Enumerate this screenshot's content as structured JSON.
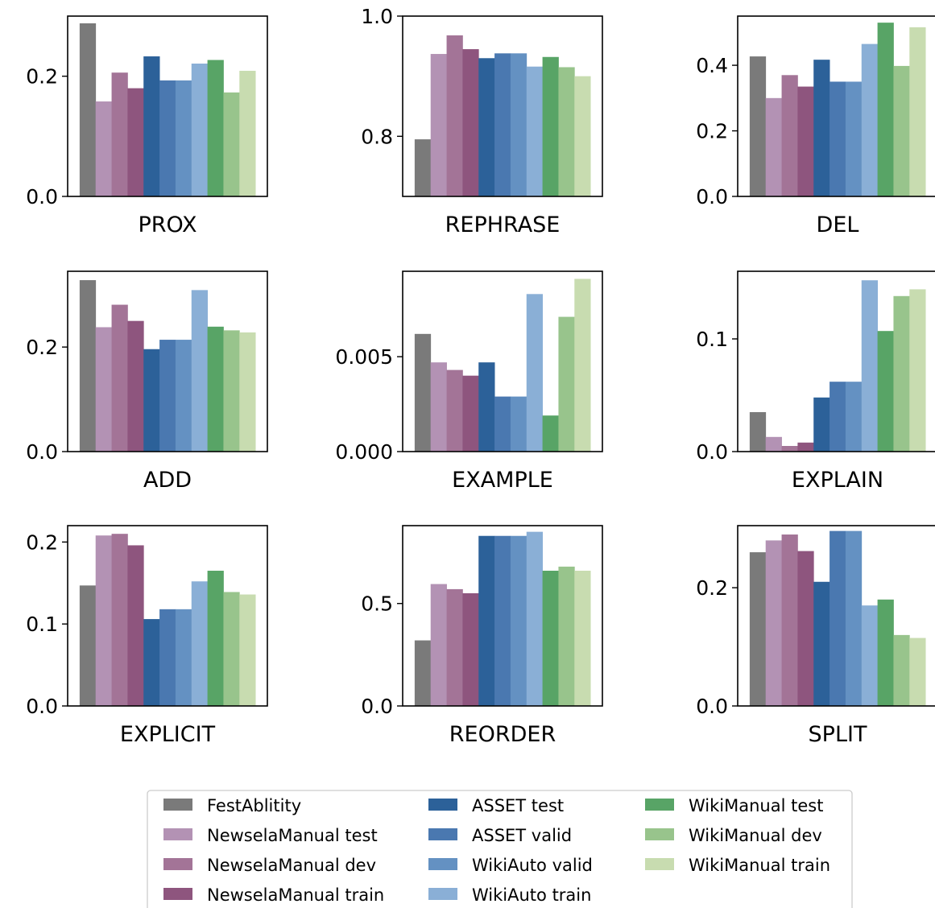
{
  "chart_data": {
    "type": "bar",
    "layout": "3x3 small multiples",
    "series_names": [
      "FestAblitity",
      "NewselaManual test",
      "NewselaManual dev",
      "NewselaManual train",
      "ASSET test",
      "ASSET valid",
      "WikiAuto valid",
      "WikiAuto train",
      "WikiManual test",
      "WikiManual dev",
      "WikiManual train"
    ],
    "colors": [
      "#7a7a7a",
      "#b392b4",
      "#a37497",
      "#8e557e",
      "#2c6199",
      "#4a78b0",
      "#6491c2",
      "#8aafd6",
      "#58a466",
      "#98c48c",
      "#c8dcb0"
    ],
    "legend": {
      "placement": "bottom-center",
      "columns": 3
    },
    "grid": false,
    "panels": [
      {
        "xlabel": "PROX",
        "ylim": [
          0,
          0.3
        ],
        "yticks": [
          0.0,
          0.2
        ],
        "ytick_labels": [
          "0.0",
          "0.2"
        ],
        "values": [
          0.288,
          0.158,
          0.206,
          0.18,
          0.233,
          0.193,
          0.193,
          0.221,
          0.227,
          0.173,
          0.209
        ]
      },
      {
        "xlabel": "REPHRASE",
        "ylim": [
          0.7,
          1.0
        ],
        "yticks": [
          0.8,
          1.0
        ],
        "ytick_labels": [
          "0.8",
          "1.0"
        ],
        "values": [
          0.795,
          0.937,
          0.968,
          0.945,
          0.93,
          0.938,
          0.938,
          0.916,
          0.932,
          0.915,
          0.9
        ]
      },
      {
        "xlabel": "DEL",
        "ylim": [
          0,
          0.55
        ],
        "yticks": [
          0.0,
          0.2,
          0.4
        ],
        "ytick_labels": [
          "0.0",
          "0.2",
          "0.4"
        ],
        "values": [
          0.427,
          0.3,
          0.37,
          0.335,
          0.417,
          0.35,
          0.35,
          0.465,
          0.53,
          0.398,
          0.516
        ]
      },
      {
        "xlabel": "ADD",
        "ylim": [
          0,
          0.345
        ],
        "yticks": [
          0.0,
          0.2
        ],
        "ytick_labels": [
          "0.0",
          "0.2"
        ],
        "values": [
          0.328,
          0.238,
          0.281,
          0.25,
          0.196,
          0.214,
          0.214,
          0.309,
          0.239,
          0.232,
          0.228
        ]
      },
      {
        "xlabel": "EXAMPLE",
        "ylim": [
          0,
          0.0095
        ],
        "yticks": [
          0.0,
          0.005
        ],
        "ytick_labels": [
          "0.000",
          "0.005"
        ],
        "values": [
          0.0062,
          0.0047,
          0.0043,
          0.004,
          0.0047,
          0.0029,
          0.0029,
          0.0083,
          0.0019,
          0.0071,
          0.0091
        ]
      },
      {
        "xlabel": "EXPLAIN",
        "ylim": [
          0,
          0.16
        ],
        "yticks": [
          0.0,
          0.1
        ],
        "ytick_labels": [
          "0.0",
          "0.1"
        ],
        "values": [
          0.035,
          0.013,
          0.005,
          0.008,
          0.048,
          0.062,
          0.062,
          0.152,
          0.107,
          0.138,
          0.144
        ]
      },
      {
        "xlabel": "EXPLICIT",
        "ylim": [
          0,
          0.22
        ],
        "yticks": [
          0.0,
          0.1,
          0.2
        ],
        "ytick_labels": [
          "0.0",
          "0.1",
          "0.2"
        ],
        "values": [
          0.147,
          0.208,
          0.21,
          0.196,
          0.106,
          0.118,
          0.118,
          0.152,
          0.165,
          0.139,
          0.136
        ]
      },
      {
        "xlabel": "REORDER",
        "ylim": [
          0,
          0.88
        ],
        "yticks": [
          0.0,
          0.5
        ],
        "ytick_labels": [
          "0.0",
          "0.5"
        ],
        "values": [
          0.32,
          0.595,
          0.57,
          0.55,
          0.83,
          0.83,
          0.83,
          0.85,
          0.66,
          0.68,
          0.66
        ]
      },
      {
        "xlabel": "SPLIT",
        "ylim": [
          0,
          0.305
        ],
        "yticks": [
          0.0,
          0.2
        ],
        "ytick_labels": [
          "0.0",
          "0.2"
        ],
        "values": [
          0.26,
          0.28,
          0.29,
          0.262,
          0.21,
          0.296,
          0.296,
          0.17,
          0.18,
          0.12,
          0.115
        ]
      }
    ]
  }
}
